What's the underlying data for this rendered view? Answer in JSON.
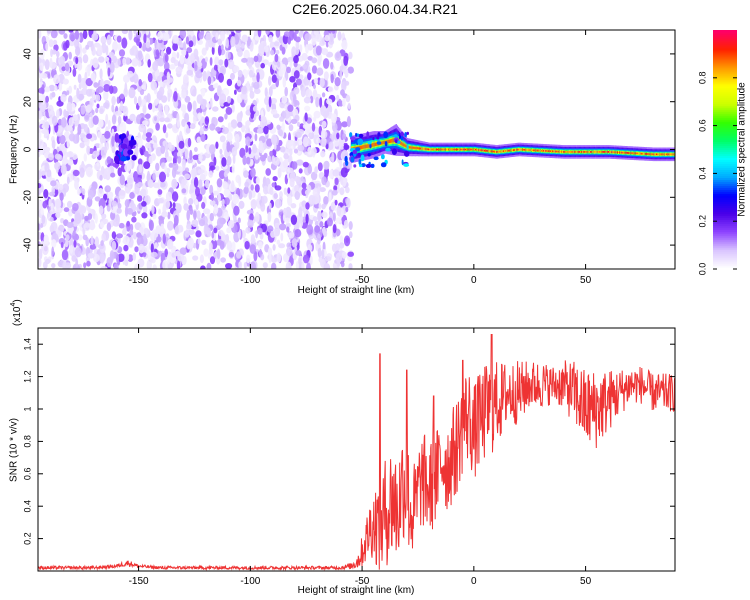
{
  "title": "C2E6.2025.060.04.34.R21",
  "chart_data": [
    {
      "type": "heatmap",
      "xlabel": "Height of straight line (km)",
      "ylabel": "Frequency (Hz)",
      "xlim": [
        -195,
        90
      ],
      "ylim": [
        -50,
        50
      ],
      "xticks": [
        -150,
        -100,
        -50,
        0,
        50
      ],
      "yticks": [
        -40,
        -20,
        0,
        20,
        40
      ],
      "colorbar": {
        "label": "Normalized spectral amplitude",
        "range": [
          0,
          1
        ],
        "ticks": [
          0.0,
          0.2,
          0.4,
          0.6,
          0.8
        ],
        "colors": [
          "#ffffff",
          "#d9c4ff",
          "#8e44ff",
          "#4a00e8",
          "#0000ff",
          "#00aaff",
          "#00ffff",
          "#00ff66",
          "#33ff00",
          "#ccff00",
          "#ffff00",
          "#ff9900",
          "#ff2200",
          "#ff0066"
        ]
      },
      "regions": [
        {
          "name": "noise",
          "x": [
            -195,
            -55
          ],
          "freq_range": [
            -50,
            50
          ],
          "amplitude": [
            0.0,
            0.15
          ]
        },
        {
          "name": "signal",
          "x": [
            -55,
            90
          ],
          "freq_center": 0,
          "amplitude": [
            0.4,
            1.0
          ]
        }
      ],
      "signal_band": {
        "x": [
          -55,
          -45,
          -40,
          -35,
          -30,
          -20,
          -10,
          0,
          10,
          20,
          40,
          60,
          80,
          90
        ],
        "freq": [
          0,
          2,
          3,
          4,
          1,
          0,
          0,
          0,
          -1,
          0,
          -1,
          -1,
          -2,
          -2
        ],
        "width_hz": [
          6,
          6,
          5,
          7,
          4,
          3,
          3,
          3,
          3,
          3,
          3,
          3,
          3,
          3
        ]
      }
    },
    {
      "type": "line",
      "xlabel": "Height of straight line (km)",
      "ylabel": "SNR (10 * v/v)",
      "ylabel_scale": "(x10",
      "ylabel_scale_exp": "4",
      "xlim": [
        -195,
        90
      ],
      "ylim": [
        0,
        1.5
      ],
      "xticks": [
        -150,
        -100,
        -50,
        0,
        50
      ],
      "yticks": [
        0.2,
        0.4,
        0.6,
        0.8,
        1.0,
        1.2,
        1.4
      ],
      "series": [
        {
          "color": "#ee3333",
          "x": [
            -195,
            -180,
            -170,
            -160,
            -155,
            -150,
            -140,
            -120,
            -100,
            -80,
            -60,
            -55,
            -52,
            -50,
            -48,
            -46,
            -44,
            -42,
            -40,
            -38,
            -36,
            -34,
            -32,
            -30,
            -28,
            -26,
            -24,
            -22,
            -20,
            -18,
            -16,
            -14,
            -12,
            -10,
            -8,
            -6,
            -4,
            -2,
            0,
            2,
            4,
            6,
            8,
            10,
            12,
            15,
            20,
            25,
            30,
            35,
            40,
            45,
            50,
            55,
            60,
            65,
            70,
            75,
            80,
            85,
            90
          ],
          "mean": [
            0.02,
            0.02,
            0.02,
            0.03,
            0.05,
            0.03,
            0.02,
            0.02,
            0.02,
            0.02,
            0.02,
            0.03,
            0.06,
            0.12,
            0.2,
            0.28,
            0.3,
            0.25,
            0.35,
            0.4,
            0.45,
            0.35,
            0.55,
            0.5,
            0.35,
            0.4,
            0.55,
            0.55,
            0.5,
            0.55,
            0.6,
            0.7,
            0.65,
            0.7,
            0.75,
            0.85,
            0.95,
            0.95,
            0.85,
            0.9,
            0.95,
            1.0,
            1.0,
            1.05,
            1.05,
            1.1,
            1.1,
            1.15,
            1.15,
            1.15,
            1.15,
            1.1,
            1.0,
            1.0,
            1.05,
            1.1,
            1.15,
            1.15,
            1.1,
            1.1,
            1.1
          ],
          "noise": [
            0.01,
            0.01,
            0.01,
            0.01,
            0.02,
            0.01,
            0.01,
            0.01,
            0.01,
            0.01,
            0.01,
            0.02,
            0.05,
            0.1,
            0.15,
            0.2,
            0.25,
            0.3,
            0.35,
            0.35,
            0.4,
            0.35,
            0.35,
            0.35,
            0.3,
            0.3,
            0.3,
            0.3,
            0.3,
            0.3,
            0.3,
            0.3,
            0.3,
            0.3,
            0.3,
            0.3,
            0.3,
            0.3,
            0.3,
            0.3,
            0.3,
            0.3,
            0.3,
            0.25,
            0.25,
            0.2,
            0.2,
            0.15,
            0.15,
            0.12,
            0.15,
            0.2,
            0.25,
            0.25,
            0.2,
            0.15,
            0.12,
            0.12,
            0.12,
            0.12,
            0.12
          ]
        }
      ],
      "peaks": [
        {
          "x": -42,
          "y": 1.34
        },
        {
          "x": -30,
          "y": 1.24
        },
        {
          "x": -18,
          "y": 1.08
        },
        {
          "x": -5,
          "y": 1.3
        },
        {
          "x": 8,
          "y": 1.46
        },
        {
          "x": 2,
          "y": 1.2
        }
      ]
    }
  ]
}
